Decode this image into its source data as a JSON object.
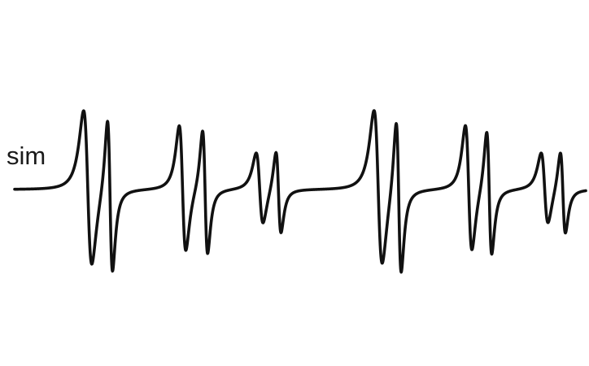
{
  "chart_data": {
    "type": "line",
    "title": "",
    "xlabel": "",
    "ylabel": "",
    "grid": false,
    "axes_visible": false,
    "series": [
      {
        "name": "sim",
        "color": "#111111",
        "lineshape": "derivative-lorentzian",
        "lines": [
          {
            "center": 0.128,
            "amplitude": 1.0,
            "width": 0.0125
          },
          {
            "center": 0.167,
            "amplitude": 0.99,
            "width": 0.0077
          },
          {
            "center": 0.294,
            "amplitude": 0.81,
            "width": 0.01
          },
          {
            "center": 0.3335,
            "amplitude": 0.8,
            "width": 0.0077
          },
          {
            "center": 0.429,
            "amplitude": 0.46,
            "width": 0.0105
          },
          {
            "center": 0.462,
            "amplitude": 0.53,
            "width": 0.0077
          },
          {
            "center": 0.6365,
            "amplitude": 1.0,
            "width": 0.0125
          },
          {
            "center": 0.6725,
            "amplitude": 0.99,
            "width": 0.0077
          },
          {
            "center": 0.795,
            "amplitude": 0.81,
            "width": 0.01
          },
          {
            "center": 0.831,
            "amplitude": 0.8,
            "width": 0.0077
          },
          {
            "center": 0.928,
            "amplitude": 0.46,
            "width": 0.0105
          },
          {
            "center": 0.96,
            "amplitude": 0.53,
            "width": 0.0077
          }
        ]
      }
    ],
    "xlim": [
      0,
      1
    ],
    "ylim": [
      -1.22,
      1.22
    ]
  },
  "trace_label": "sim"
}
